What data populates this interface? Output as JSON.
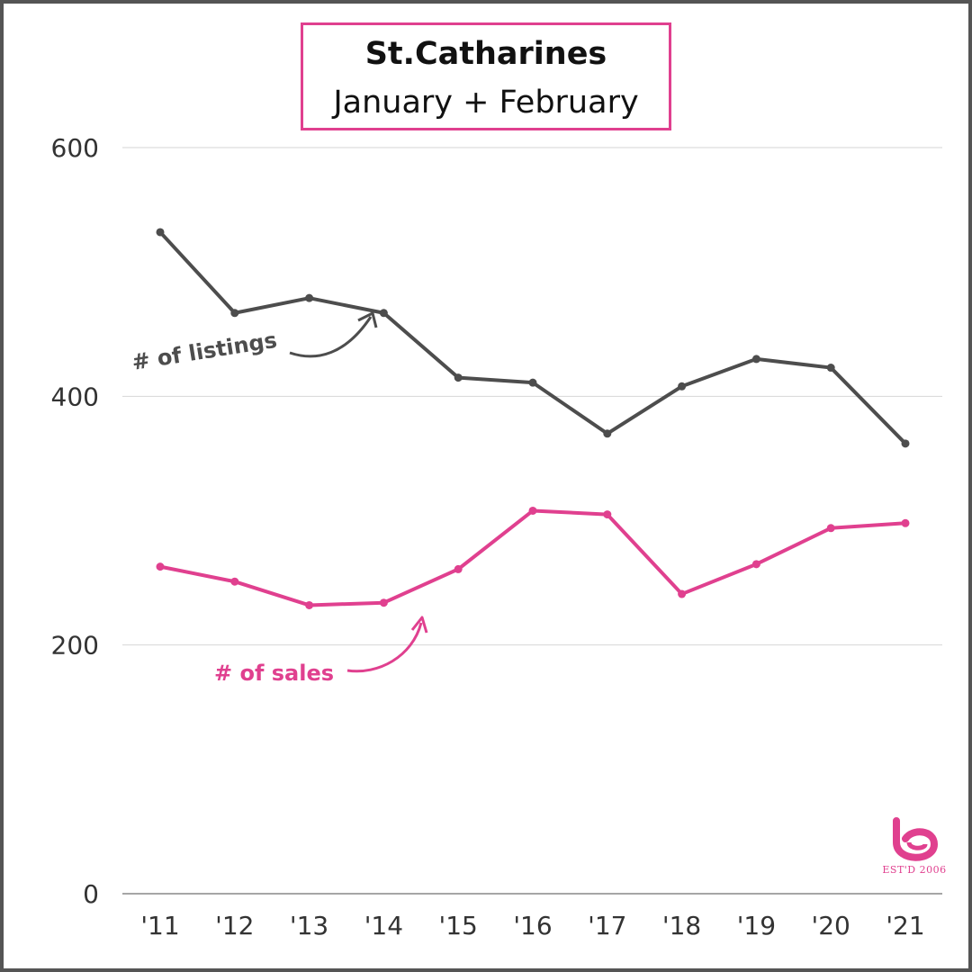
{
  "chart_data": {
    "type": "line",
    "title": "St.Catharines",
    "subtitle": "January + February",
    "categories": [
      "'11",
      "'12",
      "'13",
      "'14",
      "'15",
      "'16",
      "'17",
      "'18",
      "'19",
      "'20",
      "'21"
    ],
    "series": [
      {
        "name": "# of listings",
        "color": "#4d4d4d",
        "values": [
          532,
          467,
          479,
          467,
          415,
          411,
          370,
          408,
          430,
          423,
          362
        ]
      },
      {
        "name": "# of sales",
        "color": "#e0408f",
        "values": [
          263,
          251,
          232,
          234,
          261,
          308,
          305,
          241,
          265,
          294,
          298
        ]
      }
    ],
    "yticks": [
      0,
      200,
      400,
      600
    ],
    "ylim": [
      0,
      600
    ],
    "xlabel": "",
    "ylabel": "",
    "grid": true,
    "legend": "inline annotations with arrows"
  },
  "logo": {
    "text": "EST'D 2006",
    "color": "#e0408f"
  }
}
